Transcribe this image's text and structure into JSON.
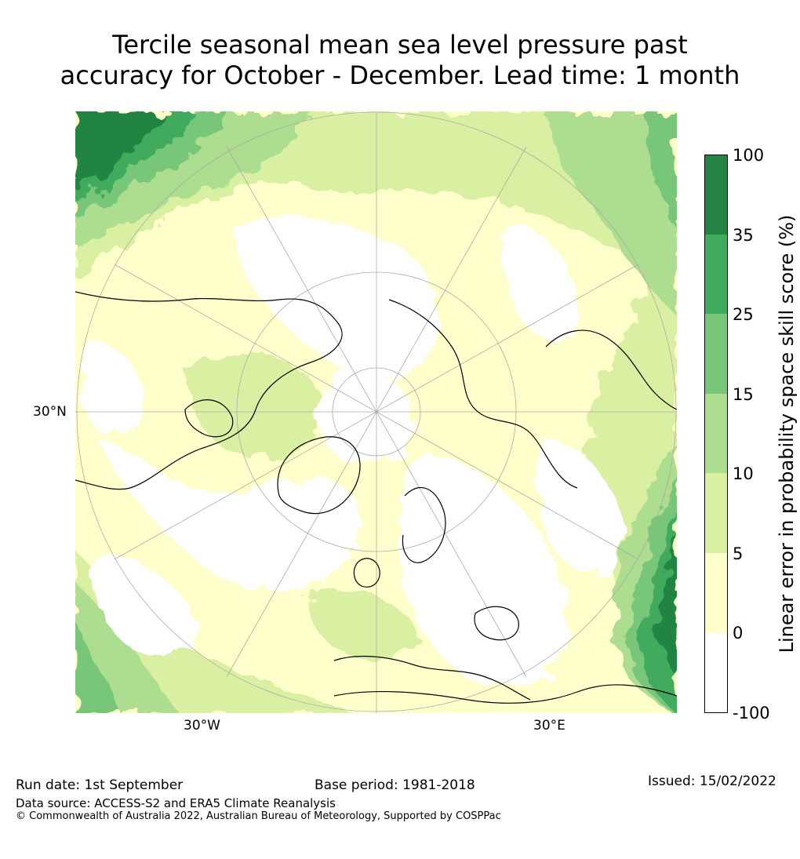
{
  "title_line1": "Tercile seasonal mean sea level pressure past",
  "title_line2": "accuracy for October - December. Lead time: 1 month",
  "map": {
    "projection": "north polar stereographic",
    "lat_labels": [
      "30°N"
    ],
    "lon_labels": [
      "30°W",
      "30°E"
    ]
  },
  "legend": {
    "title": "Linear error in probability space skill score (%)",
    "ticks": [
      "100",
      "35",
      "25",
      "15",
      "10",
      "5",
      "0",
      "-100"
    ],
    "bins": [
      {
        "range": "-100 to 0",
        "color": "#ffffff"
      },
      {
        "range": "0 to 5",
        "color": "#ffffcc"
      },
      {
        "range": "5 to 10",
        "color": "#d9f0a3"
      },
      {
        "range": "10 to 15",
        "color": "#addd8e"
      },
      {
        "range": "15 to 25",
        "color": "#78c679"
      },
      {
        "range": "25 to 35",
        "color": "#41ab5d"
      },
      {
        "range": "35 to 100",
        "color": "#238443"
      }
    ]
  },
  "footer": {
    "run_date": "Run date: 1st September",
    "base_period": "Base period: 1981-2018",
    "issued": "Issued: 15/02/2022",
    "data_source": "Data source: ACCESS-S2 and ERA5 Climate Reanalysis",
    "copyright": "© Commonwealth of Australia 2022, Australian Bureau of Meteorology, Supported by COSPPac"
  }
}
